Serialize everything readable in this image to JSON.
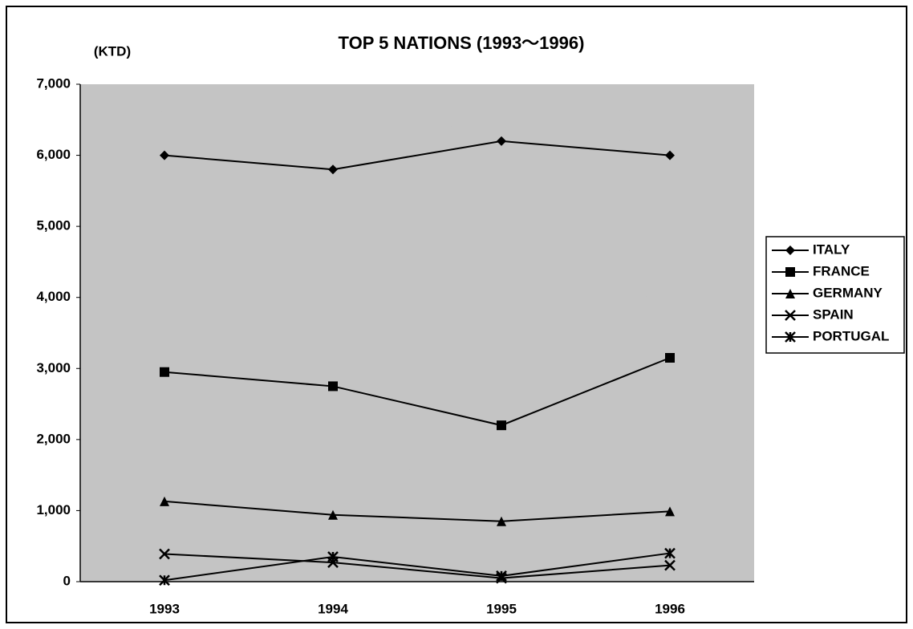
{
  "chart_data": {
    "type": "line",
    "title": "TOP 5 NATIONS (1993～1996)",
    "y_label": "(KTD)",
    "categories": [
      "1993",
      "1994",
      "1995",
      "1996"
    ],
    "series": [
      {
        "name": "ITALY",
        "color": "#000000",
        "marker": "diamond",
        "values": [
          6000,
          5800,
          6200,
          6000
        ]
      },
      {
        "name": "FRANCE",
        "color": "#000000",
        "marker": "square",
        "values": [
          2950,
          2750,
          2200,
          3150
        ]
      },
      {
        "name": "GERMANY",
        "color": "#000000",
        "marker": "triangle",
        "values": [
          1130,
          940,
          850,
          990
        ]
      },
      {
        "name": "SPAIN",
        "color": "#000000",
        "marker": "x",
        "values": [
          390,
          270,
          50,
          230
        ]
      },
      {
        "name": "PORTUGAL",
        "color": "#000000",
        "marker": "star",
        "values": [
          20,
          350,
          80,
          400
        ]
      }
    ],
    "ylim": [
      0,
      7000
    ],
    "yticks": [
      0,
      {
        "value": 1000,
        "label": "1,000"
      },
      {
        "value": 2000,
        "label": "2,000"
      },
      {
        "value": 3000,
        "label": "3,000"
      },
      {
        "value": 4000,
        "label": "4,000"
      },
      {
        "value": 5000,
        "label": "5,000"
      },
      {
        "value": 6000,
        "label": "6,000"
      },
      {
        "value": 7000,
        "label": "7,000"
      }
    ],
    "legend": "right"
  }
}
